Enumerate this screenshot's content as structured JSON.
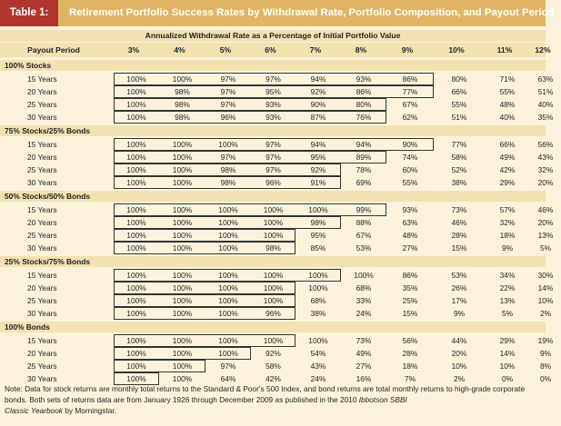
{
  "table": {
    "label": "Table 1:",
    "title": "Retirement Portfolio Success Rates by Withdrawal Rate, Portfolio Composition, and Payout Period",
    "subheader": "Annualized Withdrawal Rate as a Percentage of Initial Portfolio Value",
    "columns": [
      "Payout Period",
      "3%",
      "4%",
      "5%",
      "6%",
      "7%",
      "8%",
      "9%",
      "10%",
      "11%",
      "12%"
    ],
    "sections": [
      {
        "name": "100% Stocks",
        "rows": [
          {
            "period": "15 Years",
            "values": [
              "100%",
              "100%",
              "97%",
              "97%",
              "94%",
              "93%",
              "86%",
              "80%",
              "71%",
              "63%"
            ]
          },
          {
            "period": "20 Years",
            "values": [
              "100%",
              "98%",
              "97%",
              "95%",
              "92%",
              "86%",
              "77%",
              "66%",
              "55%",
              "51%"
            ]
          },
          {
            "period": "25 Years",
            "values": [
              "100%",
              "98%",
              "97%",
              "93%",
              "90%",
              "80%",
              "67%",
              "55%",
              "48%",
              "40%"
            ]
          },
          {
            "period": "30 Years",
            "values": [
              "100%",
              "98%",
              "96%",
              "93%",
              "87%",
              "76%",
              "62%",
              "51%",
              "40%",
              "35%"
            ]
          }
        ]
      },
      {
        "name": "75% Stocks/25% Bonds",
        "rows": [
          {
            "period": "15 Years",
            "values": [
              "100%",
              "100%",
              "100%",
              "97%",
              "94%",
              "94%",
              "90%",
              "77%",
              "66%",
              "56%"
            ]
          },
          {
            "period": "20 Years",
            "values": [
              "100%",
              "100%",
              "97%",
              "97%",
              "95%",
              "89%",
              "74%",
              "58%",
              "49%",
              "43%"
            ]
          },
          {
            "period": "25 Years",
            "values": [
              "100%",
              "100%",
              "98%",
              "97%",
              "92%",
              "78%",
              "60%",
              "52%",
              "42%",
              "32%"
            ]
          },
          {
            "period": "30 Years",
            "values": [
              "100%",
              "100%",
              "98%",
              "96%",
              "91%",
              "69%",
              "55%",
              "38%",
              "29%",
              "20%"
            ]
          }
        ]
      },
      {
        "name": "50% Stocks/50% Bonds",
        "rows": [
          {
            "period": "15 Years",
            "values": [
              "100%",
              "100%",
              "100%",
              "100%",
              "100%",
              "99%",
              "93%",
              "73%",
              "57%",
              "46%"
            ]
          },
          {
            "period": "20 Years",
            "values": [
              "100%",
              "100%",
              "100%",
              "100%",
              "98%",
              "88%",
              "63%",
              "46%",
              "32%",
              "20%"
            ]
          },
          {
            "period": "25 Years",
            "values": [
              "100%",
              "100%",
              "100%",
              "100%",
              "95%",
              "67%",
              "48%",
              "28%",
              "18%",
              "13%"
            ]
          },
          {
            "period": "30 Years",
            "values": [
              "100%",
              "100%",
              "100%",
              "98%",
              "85%",
              "53%",
              "27%",
              "15%",
              "9%",
              "5%"
            ]
          }
        ]
      },
      {
        "name": "25% Stocks/75% Bonds",
        "rows": [
          {
            "period": "15 Years",
            "values": [
              "100%",
              "100%",
              "100%",
              "100%",
              "100%",
              "100%",
              "86%",
              "53%",
              "34%",
              "30%"
            ]
          },
          {
            "period": "20 Years",
            "values": [
              "100%",
              "100%",
              "100%",
              "100%",
              "100%",
              "68%",
              "35%",
              "26%",
              "22%",
              "14%"
            ]
          },
          {
            "period": "25 Years",
            "values": [
              "100%",
              "100%",
              "100%",
              "100%",
              "68%",
              "33%",
              "25%",
              "17%",
              "13%",
              "10%"
            ]
          },
          {
            "period": "30 Years",
            "values": [
              "100%",
              "100%",
              "100%",
              "96%",
              "38%",
              "24%",
              "15%",
              "9%",
              "5%",
              "2%"
            ]
          }
        ]
      },
      {
        "name": "100% Bonds",
        "rows": [
          {
            "period": "15 Years",
            "values": [
              "100%",
              "100%",
              "100%",
              "100%",
              "100%",
              "73%",
              "56%",
              "44%",
              "29%",
              "19%"
            ]
          },
          {
            "period": "20 Years",
            "values": [
              "100%",
              "100%",
              "100%",
              "92%",
              "54%",
              "49%",
              "28%",
              "20%",
              "14%",
              "9%"
            ]
          },
          {
            "period": "25 Years",
            "values": [
              "100%",
              "100%",
              "97%",
              "58%",
              "43%",
              "27%",
              "18%",
              "10%",
              "10%",
              "8%"
            ]
          },
          {
            "period": "30 Years",
            "values": [
              "100%",
              "100%",
              "64%",
              "42%",
              "24%",
              "16%",
              "7%",
              "2%",
              "0%",
              "0%"
            ]
          }
        ]
      }
    ],
    "note_part1": "Note: Data for stock returns are monthly total returns to the Standard & Poor's 500 Index, and bond returns are total monthly returns to high-grade corporate bonds. Both sets of returns data are from January 1926 through December 2009 as published in the 2010 ",
    "note_italic1": "Ibbotson SBBI",
    "note_italic2": "Classic Yearbook",
    "note_part2": " by Morningstar."
  },
  "colors": {
    "title_bar": "#dfb563",
    "label_bg": "#b0352f",
    "header_bg": "#f3e1b2",
    "body_bg": "#fdf3dc"
  }
}
